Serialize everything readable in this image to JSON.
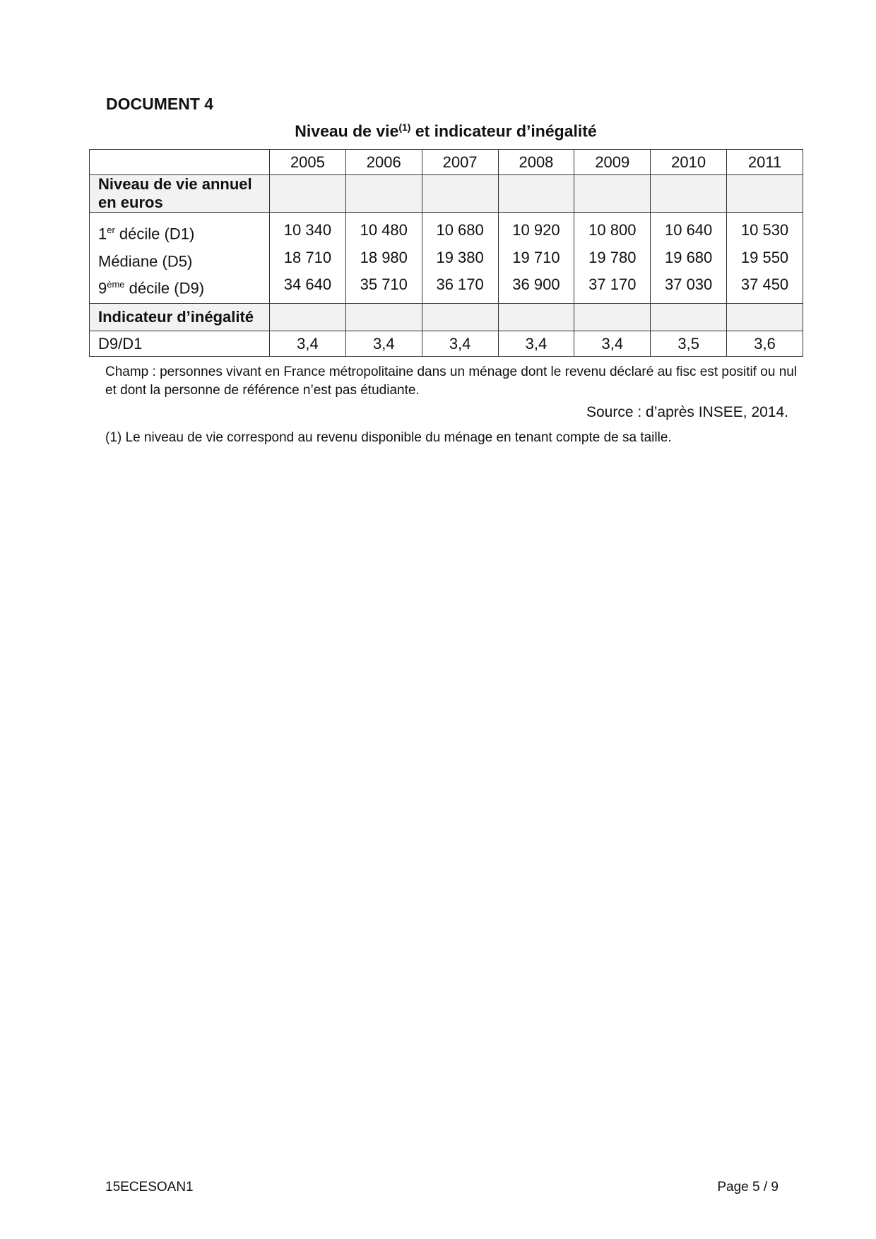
{
  "document_label": "DOCUMENT 4",
  "title": {
    "main": "Niveau de vie",
    "sup": "(1)",
    "rest": " et indicateur d’inégalité"
  },
  "table": {
    "years": [
      "2005",
      "2006",
      "2007",
      "2008",
      "2009",
      "2010",
      "2011"
    ],
    "group1_label": "Niveau de vie annuel en euros",
    "rows": [
      {
        "label_pre": "1",
        "label_sup": "er",
        "label_post": " décile (D1)",
        "values": [
          "10 340",
          "10 480",
          "10 680",
          "10 920",
          "10 800",
          "10 640",
          "10 530"
        ]
      },
      {
        "label_pre": "Médiane (D5)",
        "label_sup": "",
        "label_post": "",
        "values": [
          "18 710",
          "18 980",
          "19 380",
          "19 710",
          "19 780",
          "19 680",
          "19 550"
        ]
      },
      {
        "label_pre": "9",
        "label_sup": "ème",
        "label_post": " décile (D9)",
        "values": [
          "34 640",
          "35 710",
          "36 170",
          "36 900",
          "37 170",
          "37 030",
          "37 450"
        ]
      }
    ],
    "group2_label": "Indicateur d’inégalité",
    "ratio_label": "D9/D1",
    "ratio_values": [
      "3,4",
      "3,4",
      "3,4",
      "3,4",
      "3,4",
      "3,5",
      "3,6"
    ]
  },
  "champ": "Champ : personnes vivant en France métropolitaine dans un ménage dont le revenu déclaré au fisc est positif ou nul et dont la personne de référence n’est pas étudiante.",
  "source": "Source : d’après INSEE, 2014.",
  "footnote": "(1) Le niveau de vie correspond au revenu disponible du ménage en tenant compte de sa taille.",
  "footer": {
    "code": "15ECESOAN1",
    "page": "Page 5 / 9"
  }
}
